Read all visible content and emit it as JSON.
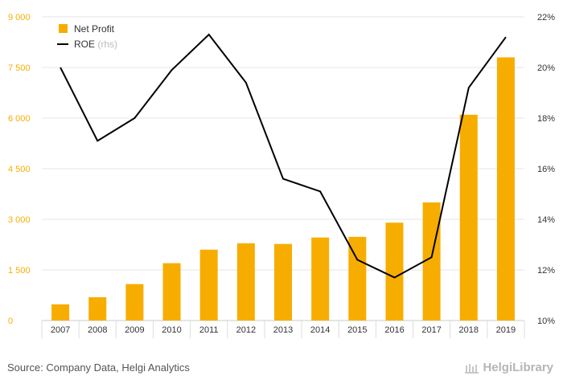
{
  "chart_data": {
    "type": "bar",
    "categories": [
      "2007",
      "2008",
      "2009",
      "2010",
      "2011",
      "2012",
      "2013",
      "2014",
      "2015",
      "2016",
      "2017",
      "2018",
      "2019"
    ],
    "series": [
      {
        "name": "Net Profit",
        "type": "bar",
        "axis": "left",
        "color": "#f7ad00",
        "values": [
          480,
          690,
          1080,
          1700,
          2100,
          2290,
          2270,
          2460,
          2480,
          2900,
          3500,
          6100,
          7800
        ]
      },
      {
        "name": "ROE",
        "type": "line",
        "axis": "right",
        "color": "#000000",
        "values": [
          20.0,
          17.1,
          18.0,
          19.9,
          21.3,
          19.4,
          15.6,
          15.1,
          12.4,
          11.7,
          12.5,
          19.2,
          21.2
        ]
      }
    ],
    "legend": [
      {
        "label": "Net Profit",
        "suffix": ""
      },
      {
        "label": "ROE",
        "suffix": "(rhs)"
      }
    ],
    "ylim_left": [
      0,
      9000
    ],
    "yticks_left": [
      "0",
      "1 500",
      "3 000",
      "4 500",
      "6 000",
      "7 500",
      "9 000"
    ],
    "ylim_right": [
      10,
      22
    ],
    "yticks_right": [
      "10%",
      "12%",
      "14%",
      "16%",
      "18%",
      "20%",
      "22%"
    ],
    "grid": true,
    "legend_position": "top-left"
  },
  "footer": {
    "source": "Source: Company Data, Helgi Analytics",
    "brand": "HelgiLibrary"
  },
  "colors": {
    "bar": "#f7ad00",
    "line": "#000000",
    "left_axis_text": "#f7ad00",
    "grid": "#e6e6e6"
  }
}
